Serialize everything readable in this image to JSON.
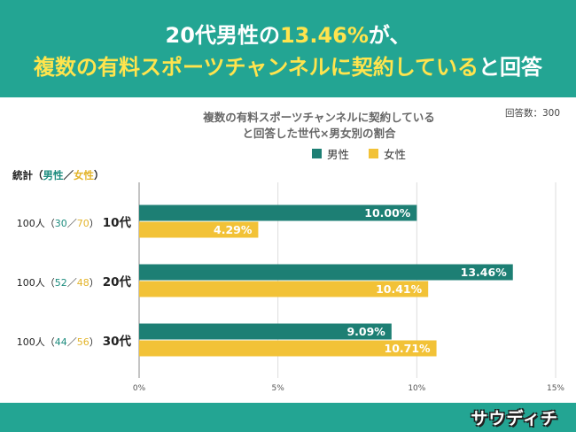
{
  "header": {
    "line1_pre": "20代男性の",
    "line1_highlight": "13.46%",
    "line1_post": "が、",
    "line2_highlight": "複数の有料スポーツチャンネルに契約している",
    "line2_post": "と回答"
  },
  "respondents": "回答数：300",
  "footer": {
    "logo_text": "サウディチ"
  },
  "colors": {
    "male": "#1d7f74",
    "female": "#f2c237",
    "header": "#23a593",
    "highlight": "#ffe44d"
  },
  "stat_header": {
    "prefix": "統計（",
    "male": "男性",
    "sep": "／",
    "female": "女性",
    "suffix": "）"
  },
  "rows": [
    {
      "total": "100人（",
      "male_n": "30",
      "sep": "／",
      "female_n": "70",
      "close": "）",
      "age": "10代"
    },
    {
      "total": "100人（",
      "male_n": "52",
      "sep": "／",
      "female_n": "48",
      "close": "）",
      "age": "20代"
    },
    {
      "total": "100人（",
      "male_n": "44",
      "sep": "／",
      "female_n": "56",
      "close": "）",
      "age": "30代"
    }
  ],
  "chart_data": {
    "type": "bar",
    "orientation": "horizontal",
    "title_line1": "複数の有料スポーツチャンネルに契約している",
    "title_line2": "と回答した世代×男女別の割合",
    "categories": [
      "10代",
      "20代",
      "30代"
    ],
    "series": [
      {
        "name": "男性",
        "values": [
          10.0,
          13.46,
          9.09
        ],
        "labels": [
          "10.00%",
          "13.46%",
          "9.09%"
        ]
      },
      {
        "name": "女性",
        "values": [
          4.29,
          10.41,
          10.71
        ],
        "labels": [
          "4.29%",
          "10.41%",
          "10.71%"
        ]
      }
    ],
    "xlim": [
      0,
      15
    ],
    "xticks": [
      "0%",
      "5%",
      "10%",
      "15%"
    ],
    "grid": true,
    "legend": "top"
  }
}
